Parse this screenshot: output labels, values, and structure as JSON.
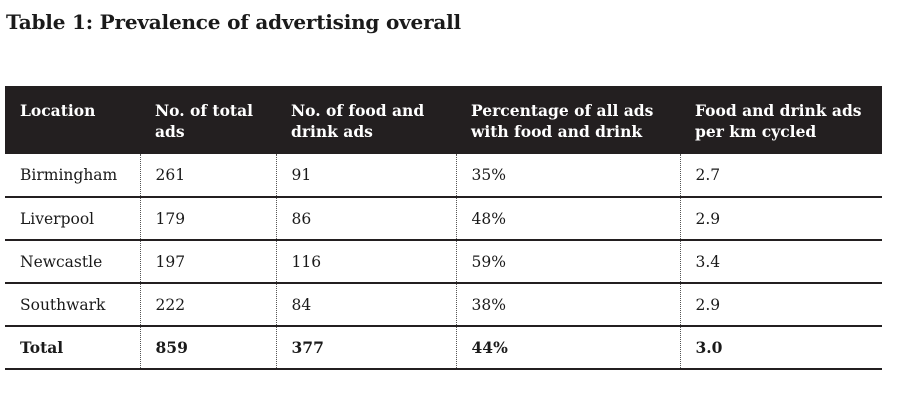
{
  "title": "Table 1: Prevalence of advertising overall",
  "table": {
    "headers": [
      "Location",
      "No. of total ads",
      "No. of food and drink ads",
      "Percentage of all ads with food and drink",
      "Food and drink ads per km cycled"
    ],
    "rows": [
      [
        "Birmingham",
        "261",
        "91",
        "35%",
        "2.7"
      ],
      [
        "Liverpool",
        "179",
        "86",
        "48%",
        "2.9"
      ],
      [
        "Newcastle",
        "197",
        "116",
        "59%",
        "3.4"
      ],
      [
        "Southwark",
        "222",
        "84",
        "38%",
        "2.9"
      ]
    ],
    "total": [
      "Total",
      "859",
      "377",
      "44%",
      "3.0"
    ]
  },
  "colors": {
    "header_background": "#231f20",
    "header_text": "#ffffff",
    "row_border": "#231f20"
  }
}
